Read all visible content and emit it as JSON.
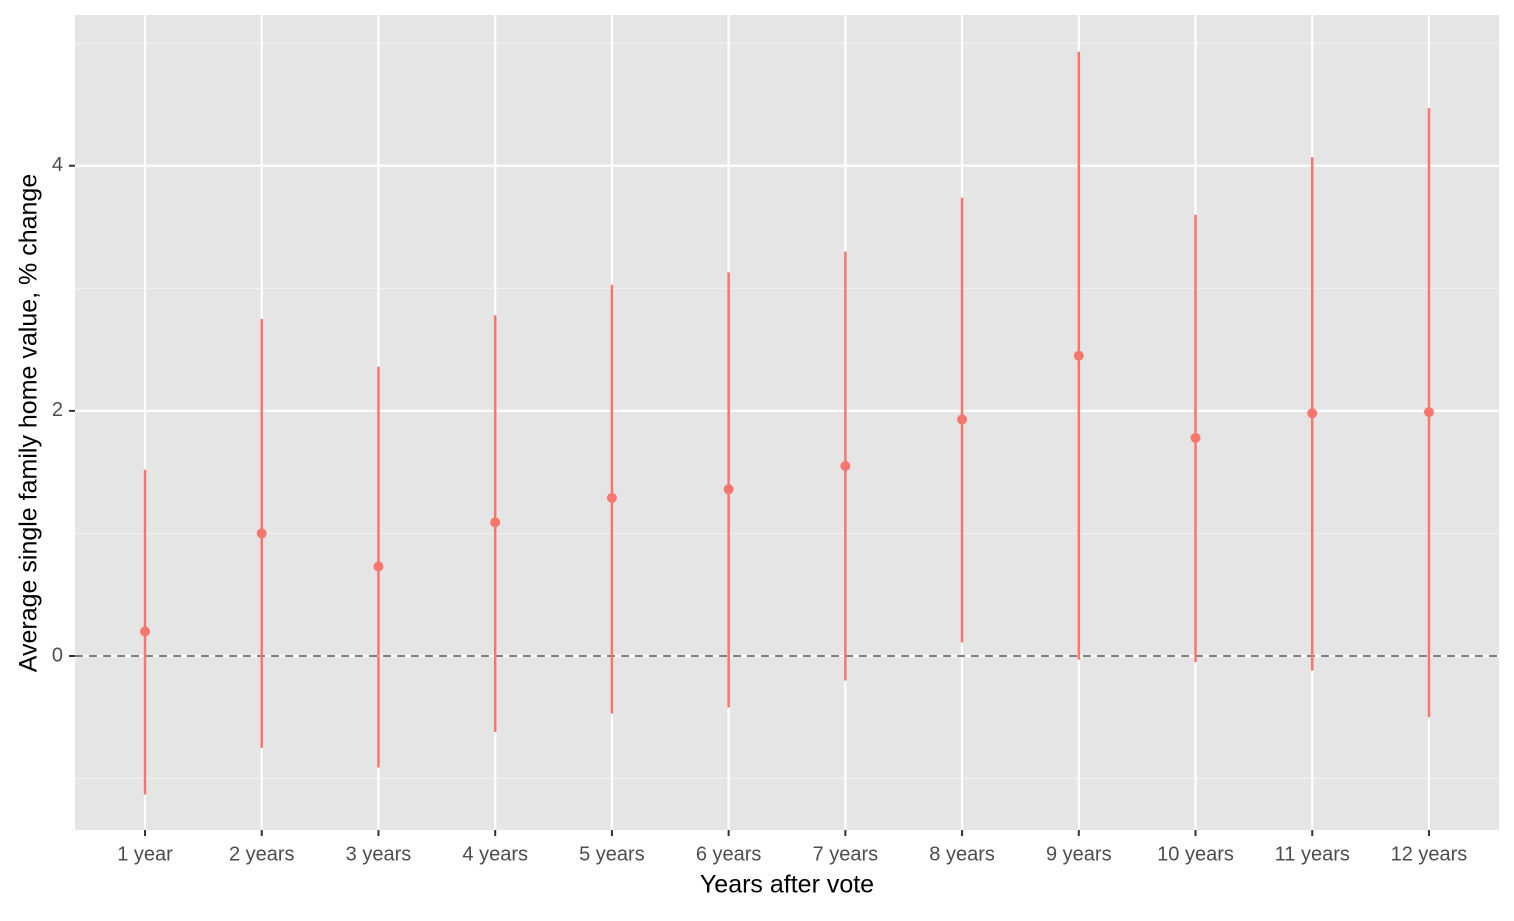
{
  "chart_data": {
    "type": "errorbar",
    "x_label": "Years after vote",
    "y_label": "Average single family home value, % change",
    "categories": [
      "1 year",
      "2 years",
      "3 years",
      "4 years",
      "5 years",
      "6 years",
      "7 years",
      "8 years",
      "9 years",
      "10 years",
      "11 years",
      "12 years"
    ],
    "series": [
      {
        "color": "#f8766d",
        "values": [
          0.2,
          1.0,
          0.73,
          1.09,
          1.29,
          1.36,
          1.55,
          1.93,
          2.45,
          1.78,
          1.98,
          1.99
        ],
        "lower": [
          -1.13,
          -0.75,
          -0.91,
          -0.62,
          -0.47,
          -0.42,
          -0.2,
          0.11,
          -0.03,
          -0.05,
          -0.12,
          -0.5
        ],
        "upper": [
          1.52,
          2.75,
          2.36,
          2.78,
          3.03,
          3.13,
          3.3,
          3.74,
          4.93,
          3.6,
          4.07,
          4.47
        ]
      }
    ],
    "ylim": [
      -1.42,
      5.23
    ],
    "yticks": [
      0,
      2,
      4
    ],
    "minor_yticks": [
      -1,
      1,
      3,
      5
    ],
    "reference_line": 0,
    "grid": true
  }
}
